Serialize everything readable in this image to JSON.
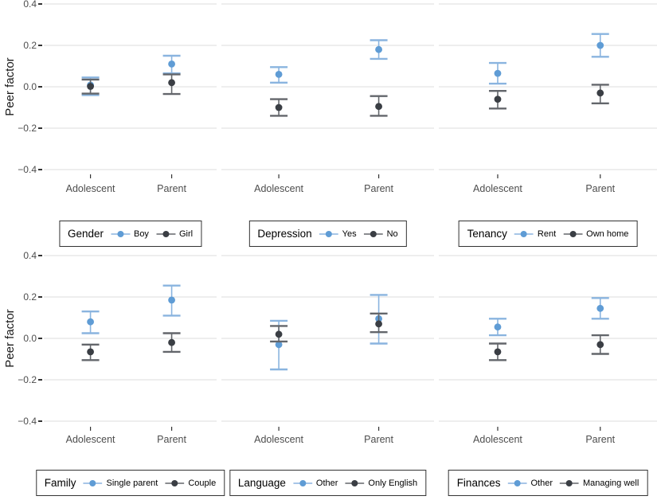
{
  "figure": {
    "background": "#ffffff"
  },
  "axis": {
    "y_title": "Peer factor",
    "y_ticks": [
      "0.4",
      "0.2",
      "0.0",
      "−0.2",
      "−0.4"
    ],
    "y_tick_values": [
      0.4,
      0.2,
      0.0,
      -0.2,
      -0.4
    ],
    "x_categories": [
      "Adolescent",
      "Parent"
    ]
  },
  "colors": {
    "blue_point": "#5F9CD5",
    "blue_bar": "#8AB4DF",
    "dark_point": "#3A3E44",
    "dark_bar": "#63666B",
    "gridline": "#DDDDDD",
    "axis_tick": "#333333",
    "tick_label_text": "#4D4D4D",
    "axis_title_text": "#1A1A1A",
    "legend_border": "#333333"
  },
  "chart_data": {
    "type": "pointrange",
    "title": "",
    "ylabel": "Peer factor",
    "xlabel": "",
    "ylim": [
      -0.46,
      0.42
    ],
    "grid": "major-horizontal-only",
    "legend_position": "below-each-panel",
    "x_categories": [
      "Adolescent",
      "Parent"
    ],
    "facets": [
      {
        "legend_title": "Gender",
        "series": [
          {
            "name": "Boy",
            "color": "blue",
            "points": [
              {
                "x": "Adolescent",
                "y": 0.008,
                "lo": -0.04,
                "hi": 0.045
              },
              {
                "x": "Parent",
                "y": 0.11,
                "lo": 0.065,
                "hi": 0.15
              }
            ]
          },
          {
            "name": "Girl",
            "color": "dark",
            "points": [
              {
                "x": "Adolescent",
                "y": 0.002,
                "lo": -0.033,
                "hi": 0.035
              },
              {
                "x": "Parent",
                "y": 0.02,
                "lo": -0.035,
                "hi": 0.06
              }
            ]
          }
        ]
      },
      {
        "legend_title": "Depression",
        "series": [
          {
            "name": "Yes",
            "color": "blue",
            "points": [
              {
                "x": "Adolescent",
                "y": 0.06,
                "lo": 0.02,
                "hi": 0.095
              },
              {
                "x": "Parent",
                "y": 0.18,
                "lo": 0.135,
                "hi": 0.225
              }
            ]
          },
          {
            "name": "No",
            "color": "dark",
            "points": [
              {
                "x": "Adolescent",
                "y": -0.1,
                "lo": -0.14,
                "hi": -0.06
              },
              {
                "x": "Parent",
                "y": -0.095,
                "lo": -0.14,
                "hi": -0.045
              }
            ]
          }
        ]
      },
      {
        "legend_title": "Tenancy",
        "series": [
          {
            "name": "Rent",
            "color": "blue",
            "points": [
              {
                "x": "Adolescent",
                "y": 0.065,
                "lo": 0.015,
                "hi": 0.115
              },
              {
                "x": "Parent",
                "y": 0.2,
                "lo": 0.145,
                "hi": 0.255
              }
            ]
          },
          {
            "name": "Own home",
            "color": "dark",
            "points": [
              {
                "x": "Adolescent",
                "y": -0.06,
                "lo": -0.105,
                "hi": -0.02
              },
              {
                "x": "Parent",
                "y": -0.03,
                "lo": -0.08,
                "hi": 0.01
              }
            ]
          }
        ]
      },
      {
        "legend_title": "Family",
        "series": [
          {
            "name": "Single parent",
            "color": "blue",
            "points": [
              {
                "x": "Adolescent",
                "y": 0.08,
                "lo": 0.025,
                "hi": 0.13
              },
              {
                "x": "Parent",
                "y": 0.185,
                "lo": 0.11,
                "hi": 0.255
              }
            ]
          },
          {
            "name": "Couple",
            "color": "dark",
            "points": [
              {
                "x": "Adolescent",
                "y": -0.065,
                "lo": -0.105,
                "hi": -0.03
              },
              {
                "x": "Parent",
                "y": -0.02,
                "lo": -0.065,
                "hi": 0.025
              }
            ]
          }
        ]
      },
      {
        "legend_title": "Language",
        "series": [
          {
            "name": "Other",
            "color": "blue",
            "points": [
              {
                "x": "Adolescent",
                "y": -0.03,
                "lo": -0.15,
                "hi": 0.085
              },
              {
                "x": "Parent",
                "y": 0.095,
                "lo": -0.025,
                "hi": 0.21
              }
            ]
          },
          {
            "name": "Only English",
            "color": "dark",
            "points": [
              {
                "x": "Adolescent",
                "y": 0.02,
                "lo": -0.015,
                "hi": 0.06
              },
              {
                "x": "Parent",
                "y": 0.07,
                "lo": 0.03,
                "hi": 0.12
              }
            ]
          }
        ]
      },
      {
        "legend_title": "Finances",
        "series": [
          {
            "name": "Other",
            "color": "blue",
            "points": [
              {
                "x": "Adolescent",
                "y": 0.055,
                "lo": 0.015,
                "hi": 0.095
              },
              {
                "x": "Parent",
                "y": 0.145,
                "lo": 0.095,
                "hi": 0.195
              }
            ]
          },
          {
            "name": "Managing well",
            "color": "dark",
            "points": [
              {
                "x": "Adolescent",
                "y": -0.065,
                "lo": -0.105,
                "hi": -0.025
              },
              {
                "x": "Parent",
                "y": -0.03,
                "lo": -0.075,
                "hi": 0.015
              }
            ]
          }
        ]
      }
    ]
  }
}
